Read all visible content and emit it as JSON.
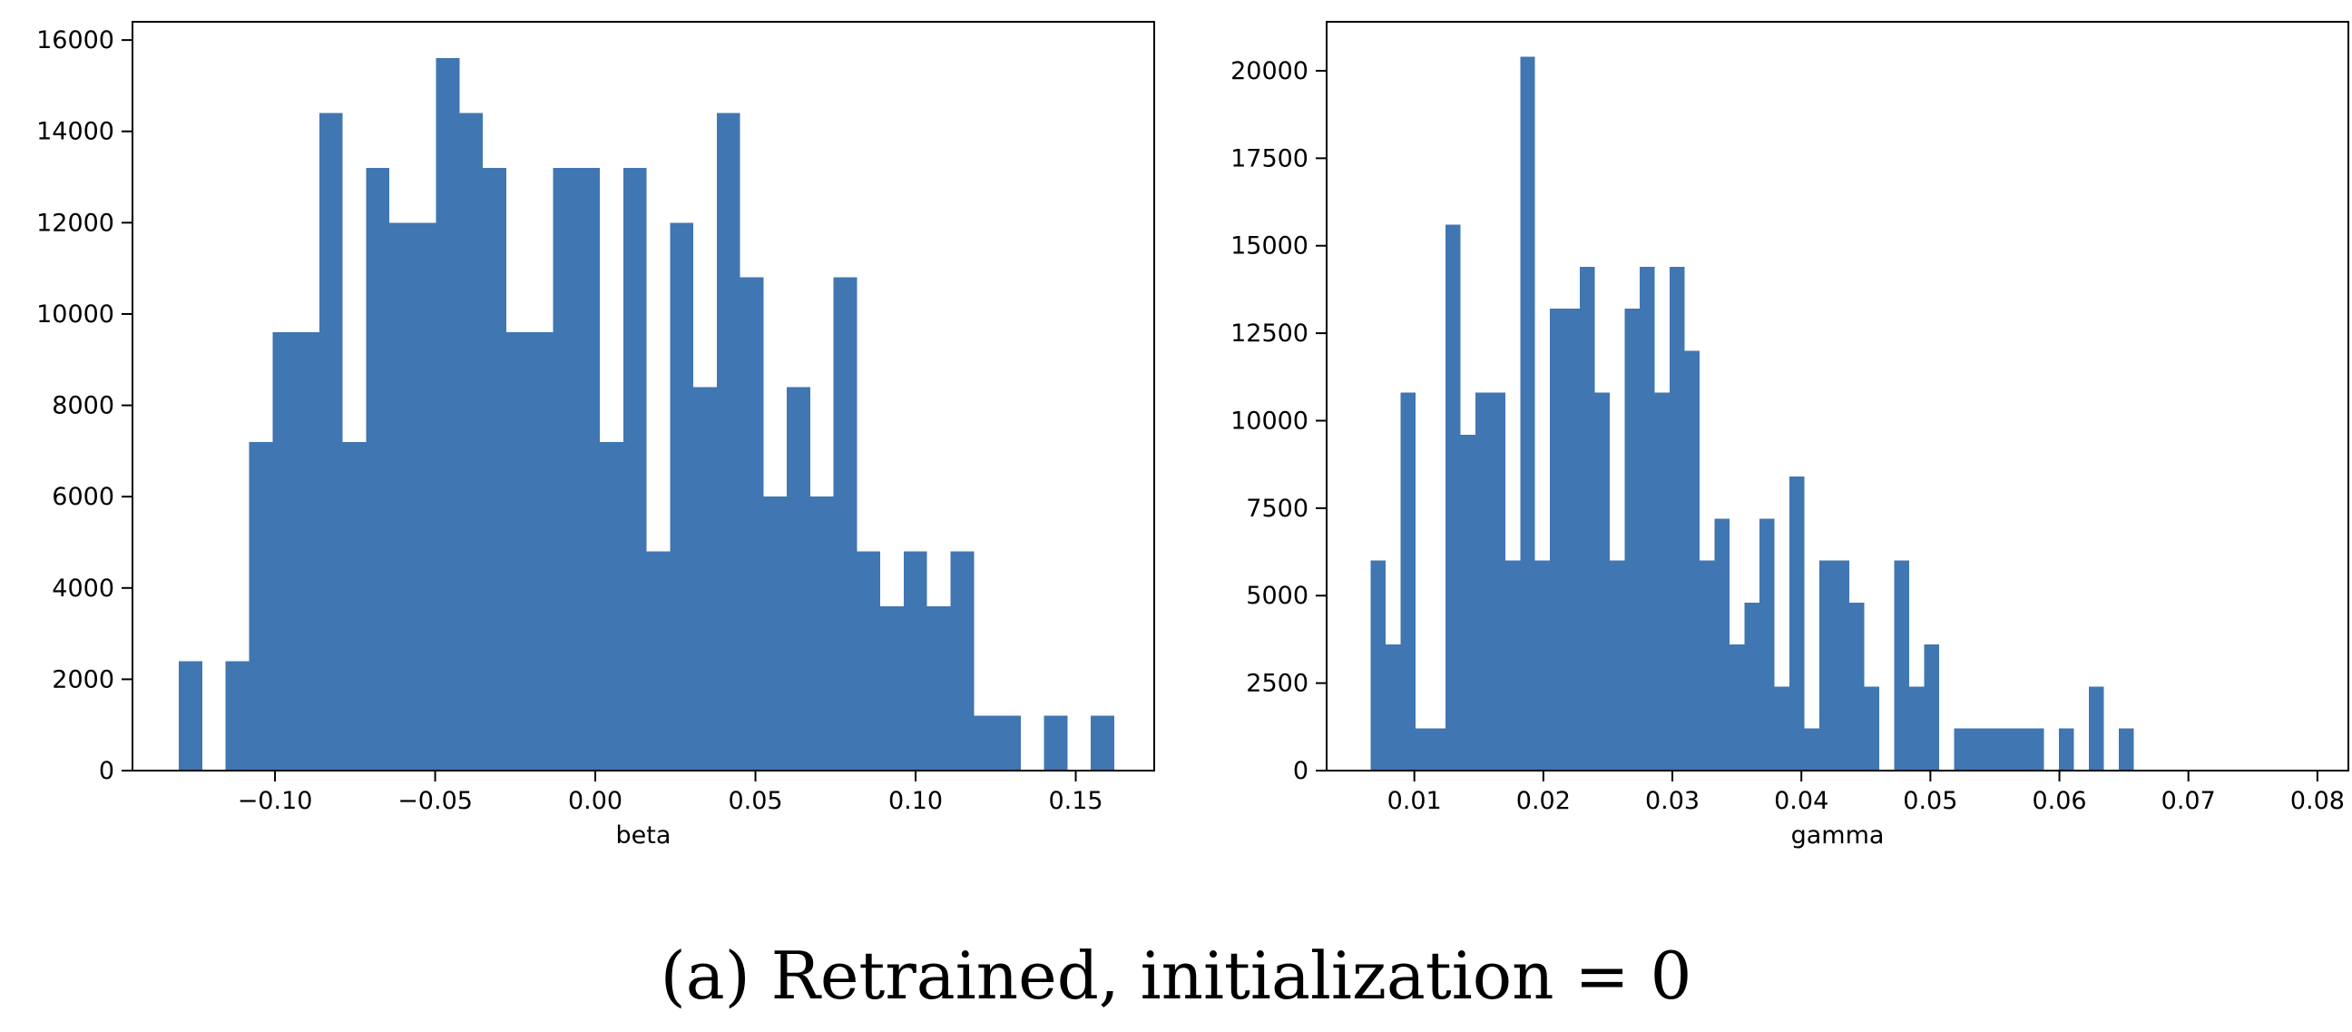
{
  "caption": "(a) Retrained, initialization = 0",
  "colors": {
    "bar": "#4076b1",
    "axis": "#000000"
  },
  "chart_data": [
    {
      "type": "bar",
      "title": "",
      "xlabel": "beta",
      "ylabel": "",
      "xlim": [
        -0.1445,
        0.1745
      ],
      "ylim": [
        0,
        16400
      ],
      "grid": false,
      "xticks": [
        -0.1,
        -0.05,
        0.0,
        0.05,
        0.1,
        0.15
      ],
      "xtick_labels": [
        "−0.10",
        "−0.05",
        "0.00",
        "0.05",
        "0.10",
        "0.15"
      ],
      "yticks": [
        0,
        2000,
        4000,
        6000,
        8000,
        10000,
        12000,
        14000,
        16000
      ],
      "ytick_labels": [
        "0",
        "2000",
        "4000",
        "6000",
        "8000",
        "10000",
        "12000",
        "14000",
        "16000"
      ],
      "bin_start": -0.13,
      "bin_width": 0.0073,
      "values": [
        2400,
        0,
        2400,
        7200,
        9600,
        9600,
        14400,
        7200,
        13200,
        12000,
        12000,
        15600,
        14400,
        13200,
        9600,
        9600,
        13200,
        13200,
        7200,
        13200,
        4800,
        12000,
        8400,
        14400,
        10800,
        6000,
        8400,
        6000,
        10800,
        4800,
        3600,
        4800,
        3600,
        4800,
        1200,
        1200,
        0,
        1200,
        0,
        1200
      ]
    },
    {
      "type": "bar",
      "title": "",
      "xlabel": "gamma",
      "ylabel": "",
      "xlim": [
        0.0032,
        0.0824
      ],
      "ylim": [
        0,
        21400
      ],
      "grid": false,
      "xticks": [
        0.01,
        0.02,
        0.03,
        0.04,
        0.05,
        0.06,
        0.07,
        0.08
      ],
      "xtick_labels": [
        "0.01",
        "0.02",
        "0.03",
        "0.04",
        "0.05",
        "0.06",
        "0.07",
        "0.08"
      ],
      "yticks": [
        0,
        2500,
        5000,
        7500,
        10000,
        12500,
        15000,
        17500,
        20000
      ],
      "ytick_labels": [
        "0",
        "2500",
        "5000",
        "7500",
        "10000",
        "12500",
        "15000",
        "17500",
        "20000"
      ],
      "bin_start": 0.0066,
      "bin_width": 0.00116,
      "values": [
        6000,
        3600,
        10800,
        1200,
        1200,
        15600,
        9600,
        10800,
        10800,
        6000,
        20400,
        6000,
        13200,
        13200,
        14400,
        10800,
        6000,
        13200,
        14400,
        10800,
        14400,
        12000,
        6000,
        7200,
        3600,
        4800,
        7200,
        2400,
        8400,
        1200,
        6000,
        6000,
        4800,
        2400,
        0,
        6000,
        2400,
        3600,
        0,
        1200,
        1200,
        1200,
        1200,
        1200,
        1200,
        0,
        1200,
        0,
        2400,
        0,
        1200
      ]
    }
  ]
}
